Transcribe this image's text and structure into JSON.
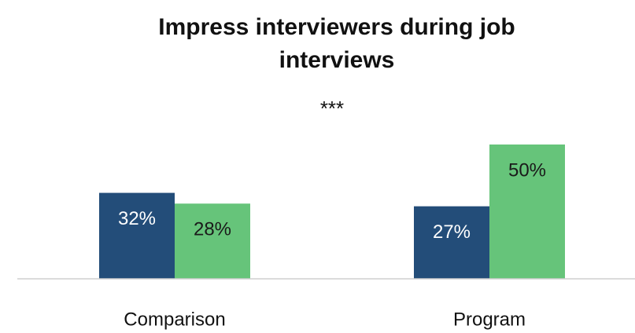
{
  "chart_data": {
    "type": "bar",
    "title": "Impress interviewers during job interviews",
    "categories": [
      "Comparison",
      "Program"
    ],
    "series": [
      {
        "color": "#234d79",
        "values": [
          32,
          27
        ],
        "value_labels": [
          "32%",
          "27%"
        ]
      },
      {
        "color": "#66c47a",
        "values": [
          28,
          50
        ],
        "value_labels": [
          "28%",
          "50%"
        ]
      }
    ],
    "annotations": [
      {
        "text": "***",
        "category": 1
      }
    ],
    "ylim": [
      0,
      50
    ]
  }
}
